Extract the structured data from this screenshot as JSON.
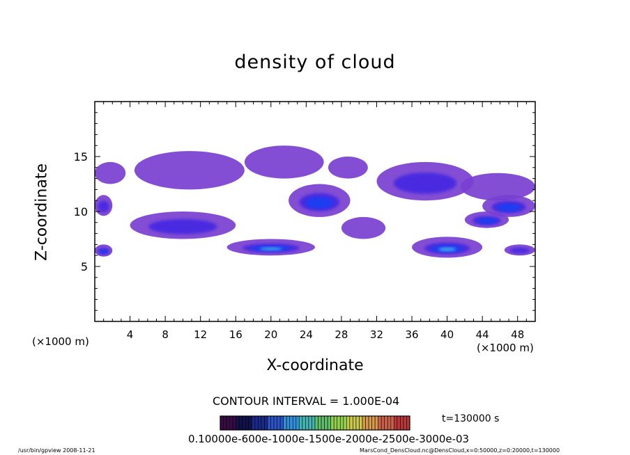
{
  "chart_data": {
    "type": "heatmap",
    "title": "density of cloud",
    "xlabel": "X-coordinate",
    "ylabel": "Z-coordinate",
    "x_unit_label": "(×1000 m)",
    "x_unit_label_right": "(×1000 m)",
    "xlim": [
      0,
      50
    ],
    "ylim": [
      0,
      20
    ],
    "xticks": [
      4,
      8,
      12,
      16,
      20,
      24,
      28,
      32,
      36,
      40,
      44,
      48
    ],
    "yticks": [
      5,
      10,
      15
    ],
    "contour_interval": "CONTOUR INTERVAL = 1.000E-04",
    "time_label": "t=130000 s",
    "colorbar_labels_text": "0.10000e-600e-1000e-1500e-2000e-2500e-3000e-03",
    "colorbar_colors": [
      "#3a0a46",
      "#12124a",
      "#1a2a8c",
      "#2a55c8",
      "#2f8fd8",
      "#43b4b4",
      "#5fbf6a",
      "#8fcf4a",
      "#c8c84a",
      "#d89a4a",
      "#c8604a",
      "#b8383a"
    ],
    "cloud_regions": [
      {
        "x": [
          0,
          3.5
        ],
        "z": [
          12.5,
          14.5
        ],
        "intensity": 0.35
      },
      {
        "x": [
          0,
          2.0
        ],
        "z": [
          9.6,
          11.5
        ],
        "intensity": 0.55
      },
      {
        "x": [
          4.5,
          17
        ],
        "z": [
          12,
          15.5
        ],
        "intensity": 0.45
      },
      {
        "x": [
          17,
          26
        ],
        "z": [
          13,
          16
        ],
        "intensity": 0.4
      },
      {
        "x": [
          22,
          29
        ],
        "z": [
          9.5,
          12.5
        ],
        "intensity": 0.7
      },
      {
        "x": [
          26.5,
          31
        ],
        "z": [
          13,
          15
        ],
        "intensity": 0.45
      },
      {
        "x": [
          32,
          43
        ],
        "z": [
          11,
          14.5
        ],
        "intensity": 0.55
      },
      {
        "x": [
          41.5,
          50
        ],
        "z": [
          11,
          13.5
        ],
        "intensity": 0.4
      },
      {
        "x": [
          44,
          50
        ],
        "z": [
          9.5,
          11.5
        ],
        "intensity": 0.65
      },
      {
        "x": [
          42,
          47
        ],
        "z": [
          8.5,
          10
        ],
        "intensity": 0.7
      },
      {
        "x": [
          4,
          16
        ],
        "z": [
          7.5,
          10
        ],
        "intensity": 0.6
      },
      {
        "x": [
          15,
          25
        ],
        "z": [
          6,
          7.5
        ],
        "intensity": 0.8
      },
      {
        "x": [
          36,
          44
        ],
        "z": [
          5.8,
          7.7
        ],
        "intensity": 0.9
      },
      {
        "x": [
          0,
          2
        ],
        "z": [
          5.9,
          7
        ],
        "intensity": 0.75
      },
      {
        "x": [
          46.5,
          50
        ],
        "z": [
          6,
          7
        ],
        "intensity": 0.6
      },
      {
        "x": [
          28,
          33
        ],
        "z": [
          7.5,
          9.5
        ],
        "intensity": 0.4
      }
    ]
  },
  "footer": {
    "left": "/usr/bin/gpview  2008-11-21",
    "right": "MarsCond_DensCloud.nc@DensCloud,x=0:50000,z=0:20000,t=130000"
  }
}
